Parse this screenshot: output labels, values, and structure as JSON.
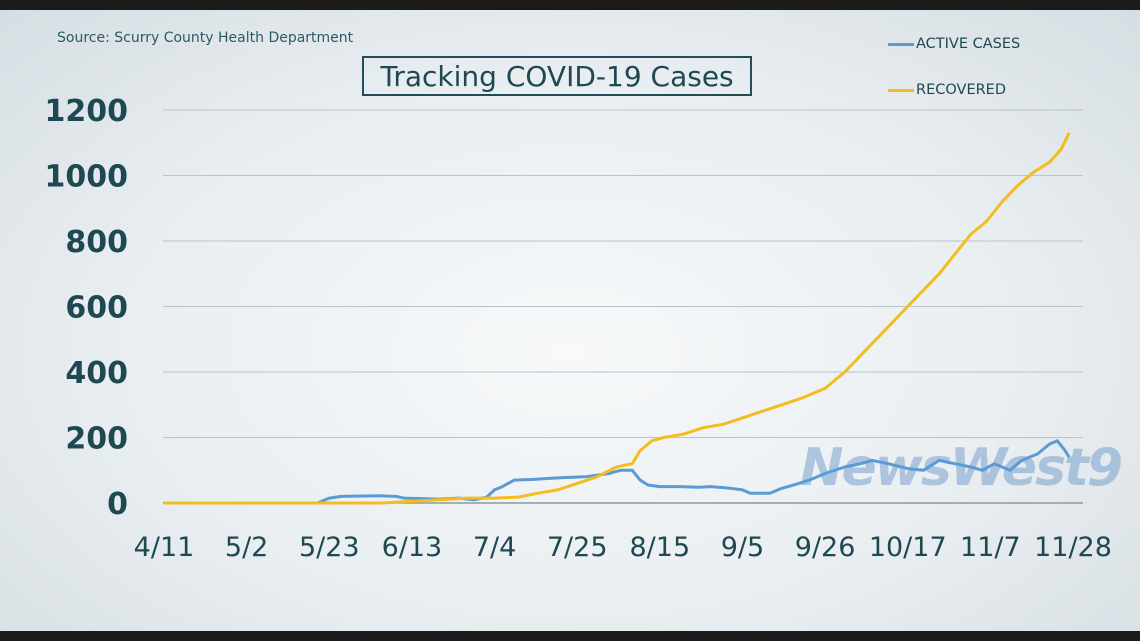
{
  "source": "Source: Scurry County Health Department",
  "logo_text": "NewsWest9",
  "colors": {
    "active": "#5b9bd5",
    "recovered": "#f4bd1f",
    "text": "#1f4952",
    "grid": "#b9c4c9"
  },
  "chart_data": {
    "type": "line",
    "title": "Tracking COVID-19 Cases",
    "xlabel": "",
    "ylabel": "",
    "ylim": [
      0,
      1200
    ],
    "yticks": [
      "0",
      "200",
      "400",
      "600",
      "800",
      "1000",
      "1200"
    ],
    "xticks": [
      "4/11",
      "5/2",
      "5/23",
      "6/13",
      "7/4",
      "7/25",
      "8/15",
      "9/5",
      "9/26",
      "10/17",
      "11/7",
      "11/28"
    ],
    "grid": true,
    "legend": "top-right",
    "series": [
      {
        "name": "ACTIVE CASES",
        "color": "#5b9bd5",
        "points": [
          [
            "4/11",
            0
          ],
          [
            "5/20",
            0
          ],
          [
            "5/23",
            15
          ],
          [
            "5/26",
            20
          ],
          [
            "6/5",
            22
          ],
          [
            "6/9",
            20
          ],
          [
            "6/11",
            15
          ],
          [
            "6/20",
            12
          ],
          [
            "6/25",
            15
          ],
          [
            "6/27",
            12
          ],
          [
            "6/29",
            10
          ],
          [
            "7/2",
            18
          ],
          [
            "7/4",
            40
          ],
          [
            "7/6",
            50
          ],
          [
            "7/9",
            70
          ],
          [
            "7/14",
            72
          ],
          [
            "7/18",
            75
          ],
          [
            "7/22",
            78
          ],
          [
            "7/27",
            80
          ],
          [
            "7/30",
            85
          ],
          [
            "8/2",
            90
          ],
          [
            "8/5",
            100
          ],
          [
            "8/8",
            100
          ],
          [
            "8/10",
            70
          ],
          [
            "8/12",
            55
          ],
          [
            "8/15",
            50
          ],
          [
            "8/20",
            50
          ],
          [
            "8/25",
            48
          ],
          [
            "8/28",
            50
          ],
          [
            "9/2",
            45
          ],
          [
            "9/5",
            40
          ],
          [
            "9/7",
            30
          ],
          [
            "9/12",
            30
          ],
          [
            "9/15",
            45
          ],
          [
            "9/18",
            55
          ],
          [
            "9/22",
            70
          ],
          [
            "9/26",
            90
          ],
          [
            "10/1",
            110
          ],
          [
            "10/5",
            120
          ],
          [
            "10/8",
            130
          ],
          [
            "10/12",
            120
          ],
          [
            "10/17",
            105
          ],
          [
            "10/21",
            100
          ],
          [
            "10/25",
            130
          ],
          [
            "10/29",
            120
          ],
          [
            "11/2",
            110
          ],
          [
            "11/5",
            100
          ],
          [
            "11/8",
            120
          ],
          [
            "11/12",
            100
          ],
          [
            "11/15",
            130
          ],
          [
            "11/19",
            150
          ],
          [
            "11/22",
            180
          ],
          [
            "11/24",
            190
          ],
          [
            "11/26",
            160
          ],
          [
            "11/27",
            140
          ]
        ]
      },
      {
        "name": "RECOVERED",
        "color": "#f4bd1f",
        "points": [
          [
            "4/11",
            0
          ],
          [
            "6/5",
            0
          ],
          [
            "6/13",
            5
          ],
          [
            "6/20",
            10
          ],
          [
            "6/27",
            15
          ],
          [
            "7/4",
            15
          ],
          [
            "7/10",
            18
          ],
          [
            "7/15",
            30
          ],
          [
            "7/20",
            40
          ],
          [
            "7/25",
            60
          ],
          [
            "7/30",
            80
          ],
          [
            "8/4",
            110
          ],
          [
            "8/8",
            120
          ],
          [
            "8/10",
            160
          ],
          [
            "8/13",
            190
          ],
          [
            "8/16",
            200
          ],
          [
            "8/21",
            210
          ],
          [
            "8/26",
            230
          ],
          [
            "8/31",
            240
          ],
          [
            "9/5",
            260
          ],
          [
            "9/10",
            280
          ],
          [
            "9/15",
            300
          ],
          [
            "9/20",
            320
          ],
          [
            "9/26",
            350
          ],
          [
            "10/1",
            400
          ],
          [
            "10/5",
            450
          ],
          [
            "10/9",
            500
          ],
          [
            "10/13",
            550
          ],
          [
            "10/17",
            600
          ],
          [
            "10/21",
            650
          ],
          [
            "10/25",
            700
          ],
          [
            "10/29",
            760
          ],
          [
            "11/2",
            820
          ],
          [
            "11/6",
            860
          ],
          [
            "11/10",
            920
          ],
          [
            "11/14",
            970
          ],
          [
            "11/18",
            1010
          ],
          [
            "11/22",
            1040
          ],
          [
            "11/25",
            1080
          ],
          [
            "11/27",
            1130
          ]
        ]
      }
    ]
  }
}
